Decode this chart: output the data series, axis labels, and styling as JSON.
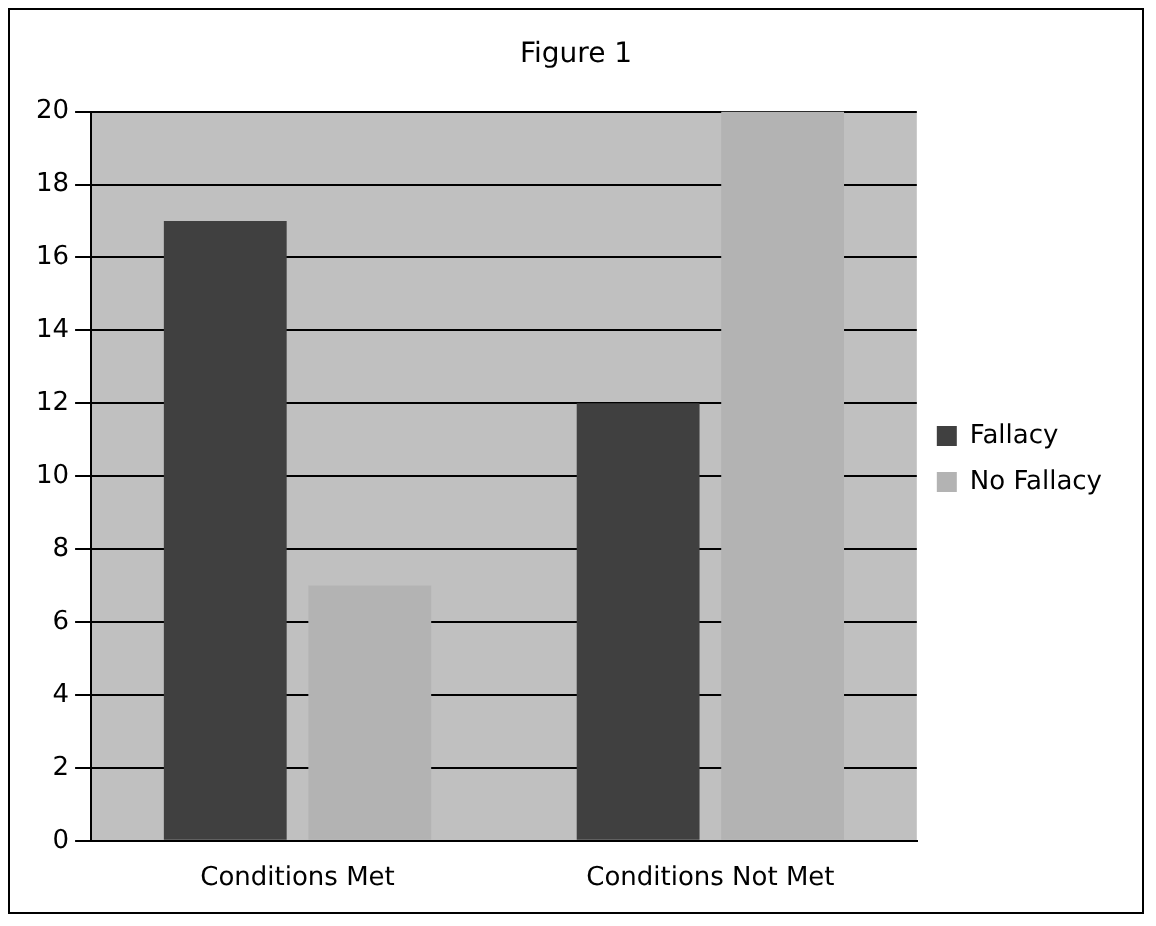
{
  "chart_data": {
    "type": "bar",
    "title": "Figure 1",
    "categories": [
      "Conditions Met",
      "Conditions Not Met"
    ],
    "series": [
      {
        "name": "Fallacy",
        "color": "#404040",
        "values": [
          17,
          12
        ]
      },
      {
        "name": "No Fallacy",
        "color": "#b3b3b3",
        "values": [
          7,
          20
        ]
      }
    ],
    "ylim": [
      0,
      20
    ],
    "yticks": [
      0,
      2,
      4,
      6,
      8,
      10,
      12,
      14,
      16,
      18,
      20
    ],
    "grid": "y",
    "legend": "right"
  }
}
